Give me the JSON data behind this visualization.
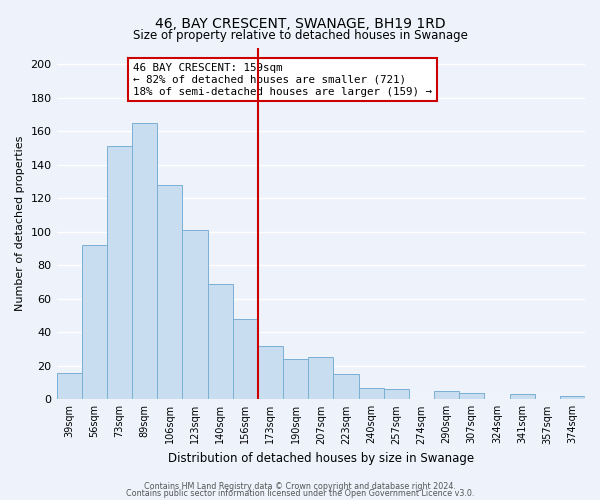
{
  "title": "46, BAY CRESCENT, SWANAGE, BH19 1RD",
  "subtitle": "Size of property relative to detached houses in Swanage",
  "xlabel": "Distribution of detached houses by size in Swanage",
  "ylabel": "Number of detached properties",
  "bar_labels": [
    "39sqm",
    "56sqm",
    "73sqm",
    "89sqm",
    "106sqm",
    "123sqm",
    "140sqm",
    "156sqm",
    "173sqm",
    "190sqm",
    "207sqm",
    "223sqm",
    "240sqm",
    "257sqm",
    "274sqm",
    "290sqm",
    "307sqm",
    "324sqm",
    "341sqm",
    "357sqm",
    "374sqm"
  ],
  "bar_values": [
    16,
    92,
    151,
    165,
    128,
    101,
    69,
    48,
    32,
    24,
    25,
    15,
    7,
    6,
    0,
    5,
    4,
    0,
    3,
    0,
    2
  ],
  "bar_color": "#c9ddf0",
  "bar_edge_color": "#7bafd4",
  "vline_x": 7.5,
  "vline_color": "#cc0000",
  "ylim": [
    0,
    210
  ],
  "yticks": [
    0,
    20,
    40,
    60,
    80,
    100,
    120,
    140,
    160,
    180,
    200
  ],
  "annotation_title": "46 BAY CRESCENT: 159sqm",
  "annotation_line1": "← 82% of detached houses are smaller (721)",
  "annotation_line2": "18% of semi-detached houses are larger (159) →",
  "annotation_box_color": "#ffffff",
  "annotation_box_edge": "#cc0000",
  "footer1": "Contains HM Land Registry data © Crown copyright and database right 2024.",
  "footer2": "Contains public sector information licensed under the Open Government Licence v3.0.",
  "bg_color": "#eef3fb",
  "grid_color": "#d8e4f0",
  "title_fontsize": 10,
  "subtitle_fontsize": 8.5
}
